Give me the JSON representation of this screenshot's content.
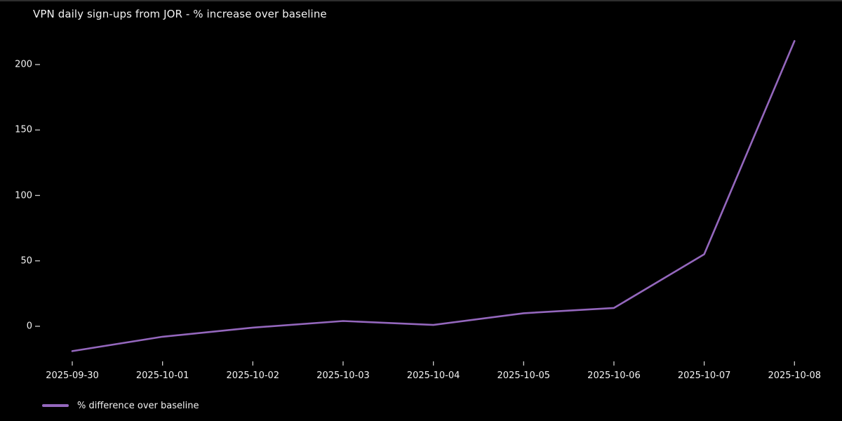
{
  "chart_data": {
    "type": "line",
    "title": "VPN daily sign-ups from JOR - % increase over baseline",
    "x": [
      "2025-09-30",
      "2025-10-01",
      "2025-10-02",
      "2025-10-03",
      "2025-10-04",
      "2025-10-05",
      "2025-10-06",
      "2025-10-07",
      "2025-10-08"
    ],
    "series": [
      {
        "name": "% difference over baseline",
        "color": "#9467bd",
        "values": [
          -19,
          -8,
          -1,
          4,
          1,
          10,
          14,
          55,
          218
        ]
      }
    ],
    "yticks": [
      0,
      50,
      100,
      150,
      200
    ],
    "ylim": [
      -30,
      230
    ],
    "xlabel": "",
    "ylabel": "",
    "grid": false,
    "legend_position": "bottom-left",
    "background": "#000000",
    "text_color": "#f2f2f2",
    "tick_color": "#cccccc"
  }
}
